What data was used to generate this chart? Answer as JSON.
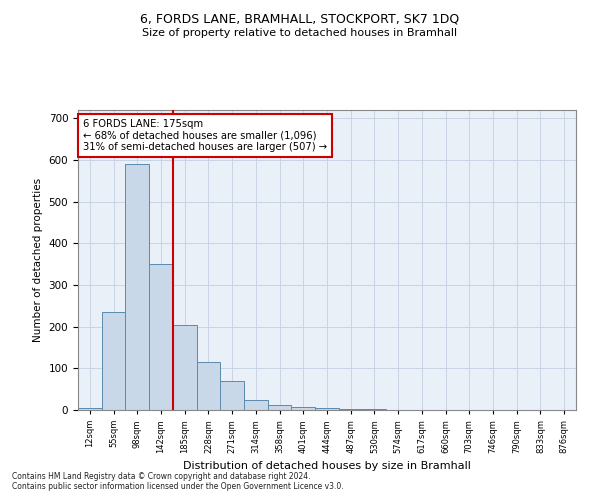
{
  "title1": "6, FORDS LANE, BRAMHALL, STOCKPORT, SK7 1DQ",
  "title2": "Size of property relative to detached houses in Bramhall",
  "xlabel": "Distribution of detached houses by size in Bramhall",
  "ylabel": "Number of detached properties",
  "bin_labels": [
    "12sqm",
    "55sqm",
    "98sqm",
    "142sqm",
    "185sqm",
    "228sqm",
    "271sqm",
    "314sqm",
    "358sqm",
    "401sqm",
    "444sqm",
    "487sqm",
    "530sqm",
    "574sqm",
    "617sqm",
    "660sqm",
    "703sqm",
    "746sqm",
    "790sqm",
    "833sqm",
    "876sqm"
  ],
  "bar_values": [
    5,
    235,
    590,
    350,
    205,
    115,
    70,
    25,
    12,
    8,
    5,
    3,
    2,
    1,
    1,
    0,
    0,
    0,
    0,
    0,
    0
  ],
  "bar_color": "#c8d8e8",
  "bar_edge_color": "#5a8ab0",
  "vline_x": 3.5,
  "vline_color": "#cc0000",
  "annotation_text": "6 FORDS LANE: 175sqm\n← 68% of detached houses are smaller (1,096)\n31% of semi-detached houses are larger (507) →",
  "annotation_box_color": "#ffffff",
  "annotation_box_edge": "#cc0000",
  "ylim": [
    0,
    720
  ],
  "yticks": [
    0,
    100,
    200,
    300,
    400,
    500,
    600,
    700
  ],
  "grid_color": "#c8d4e4",
  "background_color": "#eaf0f8",
  "footer1": "Contains HM Land Registry data © Crown copyright and database right 2024.",
  "footer2": "Contains public sector information licensed under the Open Government Licence v3.0."
}
